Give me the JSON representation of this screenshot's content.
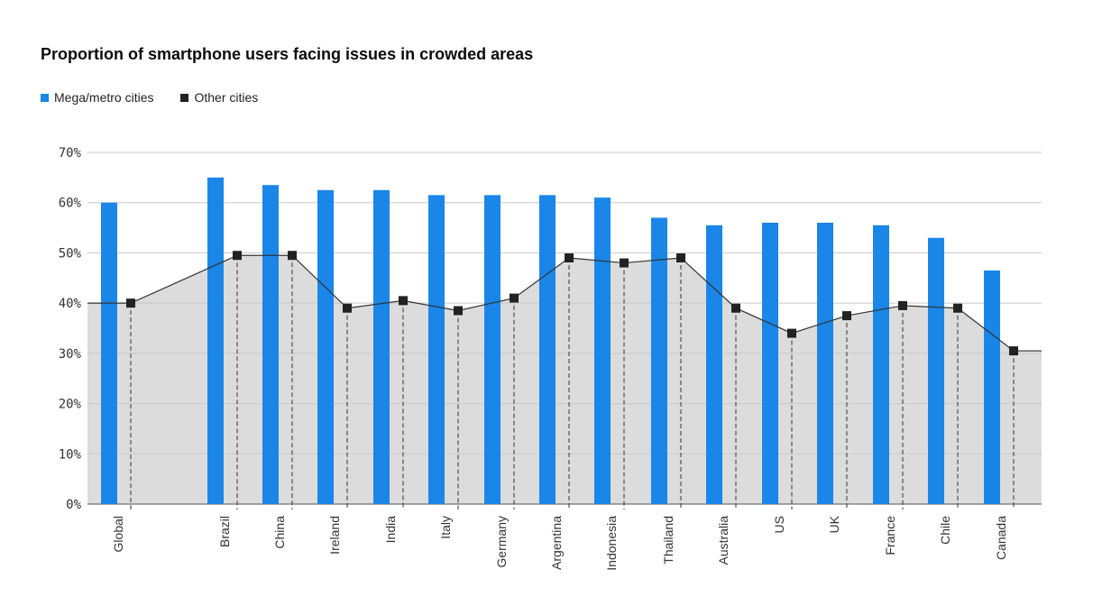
{
  "chart_data": {
    "type": "bar",
    "title": "Proportion of smartphone users facing issues in crowded areas",
    "categories": [
      "Global",
      "Brazil",
      "China",
      "Ireland",
      "India",
      "Italy",
      "Germany",
      "Argentina",
      "Indonesia",
      "Thailand",
      "Australia",
      "US",
      "UK",
      "France",
      "Chile",
      "Canada"
    ],
    "series": [
      {
        "name": "Mega/metro cities",
        "kind": "bar",
        "color": "#1a86e8",
        "values": [
          60,
          65,
          63.5,
          62.5,
          62.5,
          61.5,
          61.5,
          61.5,
          61,
          57,
          55.5,
          56,
          56,
          55.5,
          53,
          46.5
        ]
      },
      {
        "name": "Other cities",
        "kind": "line-area",
        "color": "#222222",
        "area_color": "#dcdcdc",
        "values": [
          40,
          49.5,
          49.5,
          39,
          40.5,
          38.5,
          41,
          49,
          48,
          49,
          39,
          34,
          37.5,
          39.5,
          39,
          30.5
        ]
      }
    ],
    "y_ticks": [
      "0%",
      "10%",
      "20%",
      "30%",
      "40%",
      "50%",
      "60%",
      "70%"
    ],
    "ylim": [
      0,
      70
    ],
    "grid": true,
    "legend_position": "top-left"
  }
}
